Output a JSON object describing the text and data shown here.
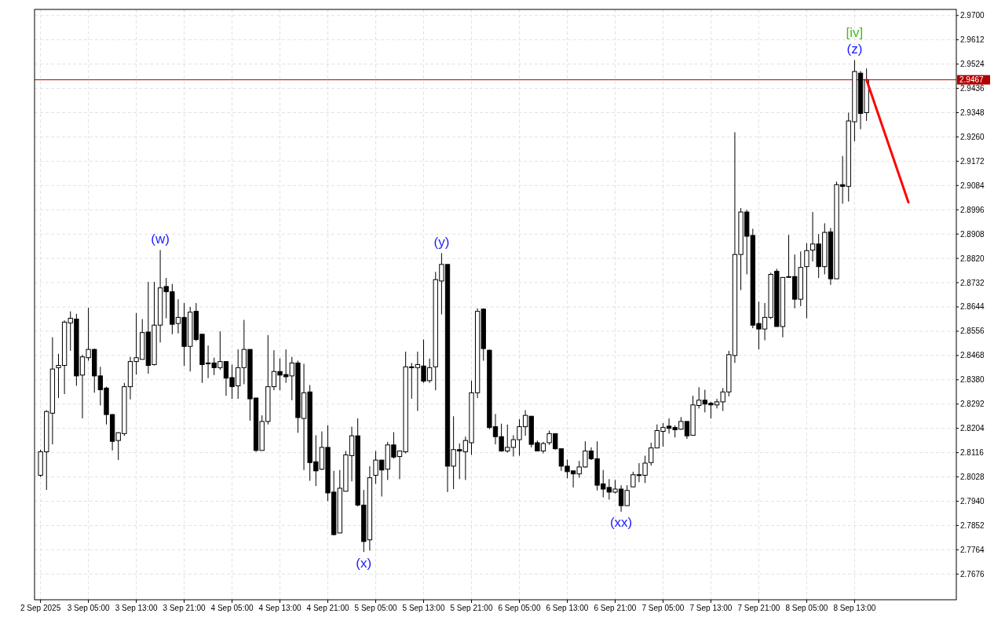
{
  "chart_data": {
    "type": "candlestick",
    "color": "#000000",
    "x": [
      "2025-09-02T21:00",
      "2025-09-02T22:00",
      "2025-09-02T23:00",
      "2025-09-03T00:00",
      "2025-09-03T01:00",
      "2025-09-03T02:00",
      "2025-09-03T03:00",
      "2025-09-03T04:00",
      "2025-09-03T05:00",
      "2025-09-03T06:00",
      "2025-09-03T07:00",
      "2025-09-03T08:00",
      "2025-09-03T09:00",
      "2025-09-03T10:00",
      "2025-09-03T11:00",
      "2025-09-03T12:00",
      "2025-09-03T13:00",
      "2025-09-03T14:00",
      "2025-09-03T15:00",
      "2025-09-03T16:00",
      "2025-09-03T17:00",
      "2025-09-03T18:00",
      "2025-09-03T19:00",
      "2025-09-03T20:00",
      "2025-09-03T21:00",
      "2025-09-03T22:00",
      "2025-09-03T23:00",
      "2025-09-04T00:00",
      "2025-09-04T01:00",
      "2025-09-04T02:00",
      "2025-09-04T03:00",
      "2025-09-04T04:00",
      "2025-09-04T05:00",
      "2025-09-04T06:00",
      "2025-09-04T07:00",
      "2025-09-04T08:00",
      "2025-09-04T09:00",
      "2025-09-04T10:00",
      "2025-09-04T11:00",
      "2025-09-04T12:00",
      "2025-09-04T13:00",
      "2025-09-04T14:00",
      "2025-09-04T15:00",
      "2025-09-04T16:00",
      "2025-09-04T17:00",
      "2025-09-04T18:00",
      "2025-09-04T19:00",
      "2025-09-04T20:00",
      "2025-09-04T21:00",
      "2025-09-04T22:00",
      "2025-09-04T23:00",
      "2025-09-05T00:00",
      "2025-09-05T01:00",
      "2025-09-05T02:00",
      "2025-09-05T03:00",
      "2025-09-05T04:00",
      "2025-09-05T05:00",
      "2025-09-05T06:00",
      "2025-09-05T07:00",
      "2025-09-05T08:00",
      "2025-09-05T09:00",
      "2025-09-05T10:00",
      "2025-09-05T11:00",
      "2025-09-05T12:00",
      "2025-09-05T13:00",
      "2025-09-05T14:00",
      "2025-09-05T15:00",
      "2025-09-05T16:00",
      "2025-09-05T17:00",
      "2025-09-05T18:00",
      "2025-09-05T19:00",
      "2025-09-05T20:00",
      "2025-09-05T21:00",
      "2025-09-05T22:00",
      "2025-09-05T23:00",
      "2025-09-06T00:00",
      "2025-09-06T01:00",
      "2025-09-06T02:00",
      "2025-09-06T03:00",
      "2025-09-06T04:00",
      "2025-09-06T05:00",
      "2025-09-06T06:00",
      "2025-09-06T07:00",
      "2025-09-06T08:00",
      "2025-09-06T09:00",
      "2025-09-06T10:00",
      "2025-09-06T11:00",
      "2025-09-06T12:00",
      "2025-09-06T13:00",
      "2025-09-06T14:00",
      "2025-09-06T15:00",
      "2025-09-06T16:00",
      "2025-09-06T17:00",
      "2025-09-06T18:00",
      "2025-09-06T19:00",
      "2025-09-06T20:00",
      "2025-09-06T21:00",
      "2025-09-06T22:00",
      "2025-09-06T23:00",
      "2025-09-07T00:00",
      "2025-09-07T01:00",
      "2025-09-07T02:00",
      "2025-09-07T03:00",
      "2025-09-07T04:00",
      "2025-09-07T05:00",
      "2025-09-07T06:00",
      "2025-09-07T07:00",
      "2025-09-07T08:00",
      "2025-09-07T09:00",
      "2025-09-07T10:00",
      "2025-09-07T11:00",
      "2025-09-07T12:00",
      "2025-09-07T13:00",
      "2025-09-07T14:00",
      "2025-09-07T15:00",
      "2025-09-07T16:00",
      "2025-09-07T17:00",
      "2025-09-07T18:00",
      "2025-09-07T19:00",
      "2025-09-07T20:00",
      "2025-09-07T21:00",
      "2025-09-07T22:00",
      "2025-09-07T23:00",
      "2025-09-08T00:00",
      "2025-09-08T01:00",
      "2025-09-08T02:00",
      "2025-09-08T03:00",
      "2025-09-08T04:00",
      "2025-09-08T05:00",
      "2025-09-08T06:00",
      "2025-09-08T07:00",
      "2025-09-08T08:00",
      "2025-09-08T09:00",
      "2025-09-08T10:00",
      "2025-09-08T11:00",
      "2025-09-08T12:00",
      "2025-09-08T13:00",
      "2025-09-08T14:00",
      "2025-09-08T15:00"
    ],
    "ohlc": [
      [
        2.8034,
        2.8127,
        2.8028,
        2.8119
      ],
      [
        2.8119,
        2.827,
        2.7981,
        2.8265
      ],
      [
        2.8259,
        2.8534,
        2.8146,
        2.8419
      ],
      [
        2.8424,
        2.8474,
        2.8314,
        2.8432
      ],
      [
        2.8432,
        2.8595,
        2.8328,
        2.8589
      ],
      [
        2.8586,
        2.8628,
        2.8485,
        2.8603
      ],
      [
        2.86,
        2.8619,
        2.8358,
        2.8394
      ],
      [
        2.8397,
        2.8471,
        2.824,
        2.8463
      ],
      [
        2.846,
        2.8641,
        2.8449,
        2.849
      ],
      [
        2.849,
        2.8493,
        2.8333,
        2.8394
      ],
      [
        2.8394,
        2.8427,
        2.8287,
        2.8344
      ],
      [
        2.835,
        2.8355,
        2.8218,
        2.8254
      ],
      [
        2.8254,
        2.8256,
        2.8124,
        2.8157
      ],
      [
        2.816,
        2.819,
        2.8089,
        2.8188
      ],
      [
        2.8185,
        2.8369,
        2.8177,
        2.8355
      ],
      [
        2.8355,
        2.8463,
        2.8309,
        2.8446
      ],
      [
        2.8446,
        2.8622,
        2.8399,
        2.846
      ],
      [
        2.8454,
        2.86,
        2.8454,
        2.8551
      ],
      [
        2.8553,
        2.8735,
        2.8402,
        2.8432
      ],
      [
        2.8435,
        2.8735,
        2.8432,
        2.8578
      ],
      [
        2.8578,
        2.885,
        2.8515,
        2.8713
      ],
      [
        2.8718,
        2.8749,
        2.8603,
        2.8699
      ],
      [
        2.8699,
        2.8727,
        2.8545,
        2.8581
      ],
      [
        2.8584,
        2.8672,
        2.8548,
        2.8606
      ],
      [
        2.8606,
        2.8658,
        2.843,
        2.8501
      ],
      [
        2.8501,
        2.8644,
        2.841,
        2.8625
      ],
      [
        2.8628,
        2.8658,
        2.852,
        2.8526
      ],
      [
        2.8545,
        2.8545,
        2.8369,
        2.8435
      ],
      [
        2.8441,
        2.8504,
        2.8386,
        2.8438
      ],
      [
        2.8441,
        2.846,
        2.8397,
        2.8424
      ],
      [
        2.8424,
        2.8556,
        2.8416,
        2.8446
      ],
      [
        2.8446,
        2.8446,
        2.8322,
        2.8386
      ],
      [
        2.8388,
        2.8435,
        2.8311,
        2.8355
      ],
      [
        2.8358,
        2.849,
        2.8311,
        2.8424
      ],
      [
        2.8424,
        2.8597,
        2.8364,
        2.849
      ],
      [
        2.849,
        2.849,
        2.8232,
        2.8311
      ],
      [
        2.8314,
        2.8314,
        2.8119,
        2.8124
      ],
      [
        2.8124,
        2.8251,
        2.8124,
        2.8229
      ],
      [
        2.8229,
        2.8542,
        2.8218,
        2.8355
      ],
      [
        2.8355,
        2.8487,
        2.8342,
        2.841
      ],
      [
        2.841,
        2.8457,
        2.8342,
        2.8397
      ],
      [
        2.8399,
        2.849,
        2.8369,
        2.8391
      ],
      [
        2.8394,
        2.8463,
        2.8306,
        2.8441
      ],
      [
        2.8441,
        2.8449,
        2.8188,
        2.8243
      ],
      [
        2.824,
        2.8438,
        2.8053,
        2.8333
      ],
      [
        2.8336,
        2.8361,
        2.8014,
        2.808
      ],
      [
        2.8083,
        2.8179,
        2.7995,
        2.805
      ],
      [
        2.8056,
        2.8193,
        2.8053,
        2.8135
      ],
      [
        2.8135,
        2.8215,
        2.794,
        2.797
      ],
      [
        2.7973,
        2.805,
        2.7816,
        2.7819
      ],
      [
        2.7825,
        2.8053,
        2.7825,
        2.7987
      ],
      [
        2.7976,
        2.8122,
        2.7976,
        2.8108
      ],
      [
        2.8105,
        2.821,
        2.8012,
        2.8177
      ],
      [
        2.8177,
        2.824,
        2.7921,
        2.7926
      ],
      [
        2.7926,
        2.7981,
        2.7756,
        2.7794
      ],
      [
        2.78,
        2.8067,
        2.7761,
        2.8025
      ],
      [
        2.8034,
        2.8122,
        2.8003,
        2.8089
      ],
      [
        2.8089,
        2.8089,
        2.7957,
        2.8053
      ],
      [
        2.8056,
        2.8155,
        2.8017,
        2.8144
      ],
      [
        2.8144,
        2.819,
        2.8094,
        2.81
      ],
      [
        2.8102,
        2.8122,
        2.802,
        2.8122
      ],
      [
        2.8119,
        2.8482,
        2.8113,
        2.8427
      ],
      [
        2.8427,
        2.8441,
        2.8311,
        2.8424
      ],
      [
        2.8424,
        2.8482,
        2.8267,
        2.8435
      ],
      [
        2.843,
        2.8526,
        2.8369,
        2.8375
      ],
      [
        2.8377,
        2.8457,
        2.8369,
        2.8424
      ],
      [
        2.8427,
        2.8771,
        2.8342,
        2.8743
      ],
      [
        2.8738,
        2.8839,
        2.8617,
        2.8798
      ],
      [
        2.8798,
        2.8798,
        2.7973,
        2.8067
      ],
      [
        2.8067,
        2.8248,
        2.7984,
        2.8127
      ],
      [
        2.8127,
        2.8149,
        2.802,
        2.8122
      ],
      [
        2.8119,
        2.8174,
        2.8017,
        2.816
      ],
      [
        2.8152,
        2.8377,
        2.8108,
        2.8333
      ],
      [
        2.8333,
        2.8639,
        2.8314,
        2.8628
      ],
      [
        2.8636,
        2.8639,
        2.8449,
        2.8493
      ],
      [
        2.8487,
        2.849,
        2.8201,
        2.8207
      ],
      [
        2.821,
        2.8256,
        2.8146,
        2.8174
      ],
      [
        2.8174,
        2.8221,
        2.8119,
        2.8122
      ],
      [
        2.8122,
        2.8218,
        2.8116,
        2.8135
      ],
      [
        2.8135,
        2.8179,
        2.8102,
        2.8163
      ],
      [
        2.8163,
        2.8237,
        2.8105,
        2.821
      ],
      [
        2.821,
        2.827,
        2.8177,
        2.8251
      ],
      [
        2.8248,
        2.8248,
        2.8135,
        2.8146
      ],
      [
        2.8152,
        2.816,
        2.8122,
        2.8122
      ],
      [
        2.8122,
        2.8155,
        2.8113,
        2.8149
      ],
      [
        2.8152,
        2.8196,
        2.8144,
        2.8185
      ],
      [
        2.8185,
        2.8185,
        2.8127,
        2.813
      ],
      [
        2.813,
        2.813,
        2.805,
        2.8067
      ],
      [
        2.8067,
        2.8091,
        2.8023,
        2.8047
      ],
      [
        2.805,
        2.805,
        2.799,
        2.8039
      ],
      [
        2.8039,
        2.8086,
        2.8025,
        2.8064
      ],
      [
        2.8064,
        2.8157,
        2.8061,
        2.8122
      ],
      [
        2.8122,
        2.8135,
        2.8089,
        2.8094
      ],
      [
        2.8094,
        2.8157,
        2.7979,
        2.7998
      ],
      [
        2.8003,
        2.8053,
        2.7954,
        2.7984
      ],
      [
        2.799,
        2.802,
        2.7946,
        2.7973
      ],
      [
        2.7973,
        2.8017,
        2.7968,
        2.7984
      ],
      [
        2.7984,
        2.7998,
        2.7902,
        2.7924
      ],
      [
        2.7924,
        2.7998,
        2.7924,
        2.7979
      ],
      [
        2.7992,
        2.8047,
        2.7992,
        2.8036
      ],
      [
        2.8036,
        2.8078,
        2.8009,
        2.8034
      ],
      [
        2.8034,
        2.8105,
        2.8006,
        2.8078
      ],
      [
        2.808,
        2.8152,
        2.8069,
        2.8133
      ],
      [
        2.8133,
        2.8218,
        2.8133,
        2.8196
      ],
      [
        2.8193,
        2.8223,
        2.8138,
        2.8207
      ],
      [
        2.8212,
        2.824,
        2.8185,
        2.8204
      ],
      [
        2.8207,
        2.8215,
        2.8171,
        2.8199
      ],
      [
        2.8201,
        2.8245,
        2.8199,
        2.8229
      ],
      [
        2.8229,
        2.8229,
        2.8166,
        2.8177
      ],
      [
        2.8179,
        2.8322,
        2.8179,
        2.8289
      ],
      [
        2.8287,
        2.8353,
        2.8276,
        2.8306
      ],
      [
        2.8306,
        2.8344,
        2.8262,
        2.8292
      ],
      [
        2.8295,
        2.83,
        2.824,
        2.8289
      ],
      [
        2.8289,
        2.8311,
        2.8276,
        2.83
      ],
      [
        2.83,
        2.835,
        2.8267,
        2.8336
      ],
      [
        2.8336,
        2.8485,
        2.832,
        2.8471
      ],
      [
        2.8468,
        2.9277,
        2.8441,
        2.8834
      ],
      [
        2.8834,
        2.9002,
        2.8705,
        2.8988
      ],
      [
        2.8988,
        2.8996,
        2.8762,
        2.89
      ],
      [
        2.8903,
        2.8927,
        2.8567,
        2.8578
      ],
      [
        2.8584,
        2.8663,
        2.849,
        2.8564
      ],
      [
        2.8564,
        2.8658,
        2.8523,
        2.8606
      ],
      [
        2.8606,
        2.8768,
        2.86,
        2.8762
      ],
      [
        2.8773,
        2.8782,
        2.8573,
        2.8573
      ],
      [
        2.8573,
        2.8751,
        2.8534,
        2.8751
      ],
      [
        2.8751,
        2.8905,
        2.8751,
        2.8754
      ],
      [
        2.8754,
        2.8834,
        2.8639,
        2.8672
      ],
      [
        2.8672,
        2.8845,
        2.8647,
        2.8787
      ],
      [
        2.879,
        2.8875,
        2.8603,
        2.8848
      ],
      [
        2.885,
        2.8988,
        2.8809,
        2.8872
      ],
      [
        2.8872,
        2.8908,
        2.8749,
        2.879
      ],
      [
        2.879,
        2.8947,
        2.8762,
        2.8914
      ],
      [
        2.8916,
        2.893,
        2.8724,
        2.8746
      ],
      [
        2.8746,
        2.9098,
        2.8746,
        2.9087
      ],
      [
        2.9087,
        2.9191,
        2.9018,
        2.9081
      ],
      [
        2.9081,
        2.9348,
        2.9026,
        2.9318
      ],
      [
        2.9315,
        2.9538,
        2.9244,
        2.9497
      ],
      [
        2.9491,
        2.9499,
        2.9288,
        2.9345
      ],
      [
        2.9348,
        2.9508,
        2.9318,
        2.9467
      ]
    ],
    "series": [
      {
        "type": "line",
        "color": "#ff0000",
        "x": [
          "2025-09-08T15:00",
          "2025-09-08T22:00"
        ],
        "values": [
          2.9467,
          2.9023
        ]
      }
    ],
    "xlim": [
      "2025-09-02T20:00",
      "2025-09-09T06:00"
    ],
    "xticks": [
      {
        "value": "2025-09-02T21:00",
        "label": "2 Sep 2025"
      },
      {
        "value": "2025-09-03T05:00",
        "label": "3 Sep 05:00"
      },
      {
        "value": "2025-09-03T13:00",
        "label": "3 Sep 13:00"
      },
      {
        "value": "2025-09-03T21:00",
        "label": "3 Sep 21:00"
      },
      {
        "value": "2025-09-04T05:00",
        "label": "4 Sep 05:00"
      },
      {
        "value": "2025-09-04T13:00",
        "label": "4 Sep 13:00"
      },
      {
        "value": "2025-09-04T21:00",
        "label": "4 Sep 21:00"
      },
      {
        "value": "2025-09-05T05:00",
        "label": "5 Sep 05:00"
      },
      {
        "value": "2025-09-05T13:00",
        "label": "5 Sep 13:00"
      },
      {
        "value": "2025-09-05T21:00",
        "label": "5 Sep 21:00"
      },
      {
        "value": "2025-09-06T05:00",
        "label": "6 Sep 05:00"
      },
      {
        "value": "2025-09-06T13:00",
        "label": "6 Sep 13:00"
      },
      {
        "value": "2025-09-06T21:00",
        "label": "6 Sep 21:00"
      },
      {
        "value": "2025-09-07T05:00",
        "label": "7 Sep 05:00"
      },
      {
        "value": "2025-09-07T13:00",
        "label": "7 Sep 13:00"
      },
      {
        "value": "2025-09-07T21:00",
        "label": "7 Sep 21:00"
      },
      {
        "value": "2025-09-08T05:00",
        "label": "8 Sep 05:00"
      },
      {
        "value": "2025-09-08T13:00",
        "label": "8 Sep 13:00"
      }
    ],
    "ylim": [
      2.7583,
      2.9722
    ],
    "yticks": [
      2.7676,
      2.7764,
      2.7852,
      {
        "value": 2.794,
        "label": "2.7940"
      },
      2.8028,
      2.8116,
      2.8204,
      2.8292,
      {
        "value": 2.838,
        "label": "2.8380"
      },
      2.8468,
      2.8556,
      2.8644,
      2.8732,
      {
        "value": 2.882,
        "label": "2.8820"
      },
      2.8908,
      2.8996,
      2.9084,
      2.9172,
      {
        "value": 2.926,
        "label": "2.9260"
      },
      2.9348,
      2.9436,
      2.9524,
      2.9612,
      {
        "value": 2.97,
        "label": "2.9700"
      }
    ],
    "grid": true,
    "ref_lines": [
      {
        "axis": "y",
        "value": 2.9467,
        "label": "2.9467",
        "color": "#b00000"
      }
    ],
    "annotations": [
      {
        "text": "(w)",
        "x": "2025-09-03T17:00",
        "y": 2.885
      },
      {
        "text": "(x)",
        "x": "2025-09-05T03:00",
        "y": 2.7756
      },
      {
        "text": "(y)",
        "x": "2025-09-05T16:00",
        "y": 2.8839
      },
      {
        "text": "(xx)",
        "x": "2025-09-06T22:00",
        "y": 2.7902
      },
      {
        "text": "(z)",
        "x": "2025-09-08T13:00",
        "y": 2.9538
      },
      {
        "text": "[iv]",
        "x": "2025-09-08T13:00",
        "y": 2.9538
      }
    ]
  }
}
